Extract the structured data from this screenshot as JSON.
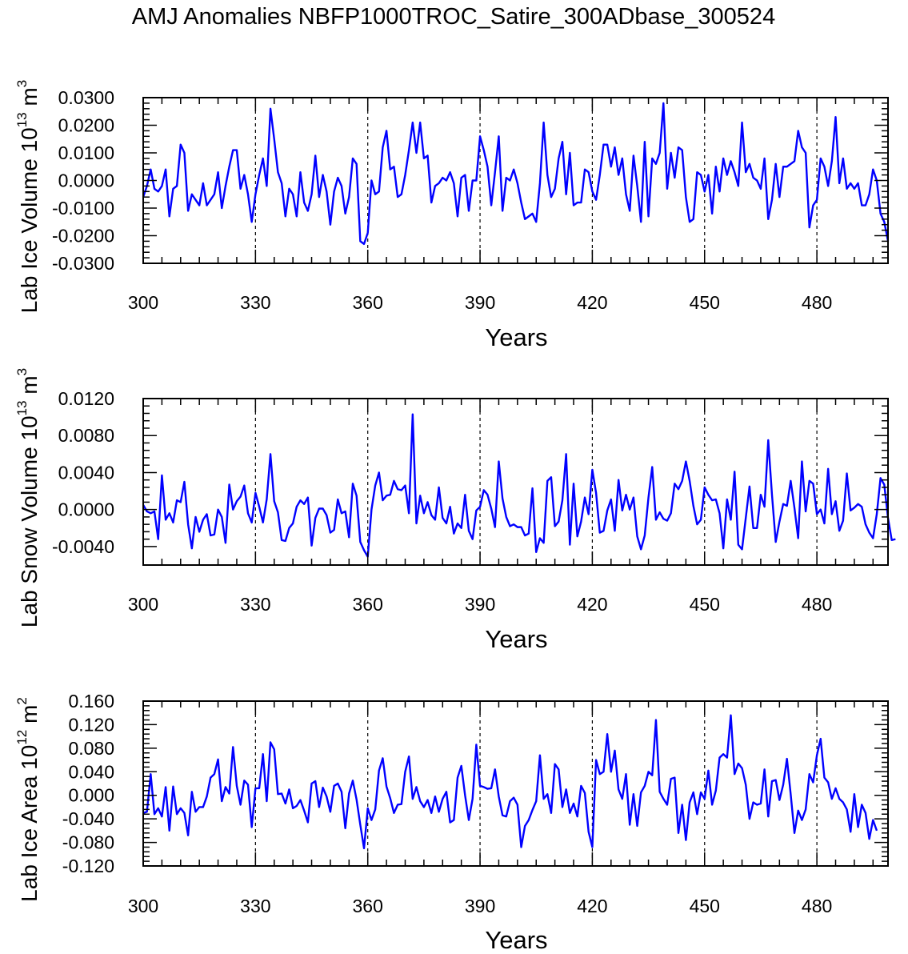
{
  "title": "AMJ Anomalies NBFP1000TROC_Satire_300ADbase_300524",
  "colors": {
    "series": "#0000ff",
    "axes": "#000000",
    "reference": "#000000"
  },
  "chart_data": [
    {
      "type": "line",
      "ylabel": {
        "text": "Lab Ice Volume 10",
        "exponent": "13",
        "unit": " m",
        "unit_exponent": "3"
      },
      "xlabel": "Years",
      "xlim": [
        300,
        499
      ],
      "ylim": [
        -0.03,
        0.03
      ],
      "xticks": [
        300,
        330,
        360,
        390,
        420,
        450,
        480
      ],
      "xtick_labels": [
        "300",
        "330",
        "360",
        "390",
        "420",
        "450",
        "480"
      ],
      "yticks": [
        -0.03,
        -0.02,
        -0.01,
        0,
        0.01,
        0.02,
        0.03
      ],
      "ytick_labels": [
        "-0.0300",
        "-0.0200",
        "-0.0100",
        "0.0000",
        "0.0100",
        "0.0200",
        "0.0300"
      ],
      "reference_lines_x": [
        330,
        360,
        390,
        420,
        450,
        480
      ],
      "series": [
        {
          "name": "Lab Ice Volume",
          "x_start": 300,
          "x_step": 1,
          "values": [
            -0.006,
            -0.002,
            0.004,
            -0.003,
            -0.004,
            -0.002,
            0.004,
            -0.013,
            -0.003,
            -0.002,
            0.013,
            0.01,
            -0.011,
            -0.005,
            -0.007,
            -0.009,
            -0.001,
            -0.009,
            -0.007,
            -0.005,
            0.003,
            -0.01,
            -0.002,
            0.005,
            0.011,
            0.011,
            -0.003,
            0.002,
            -0.005,
            -0.015,
            -0.005,
            0.002,
            0.008,
            -0.002,
            0.026,
            0.015,
            0.003,
            -0.001,
            -0.013,
            -0.003,
            -0.005,
            -0.013,
            0.003,
            -0.008,
            -0.011,
            -0.005,
            0.009,
            -0.006,
            0.002,
            -0.004,
            -0.016,
            -0.004,
            0.001,
            -0.002,
            -0.012,
            -0.006,
            0.008,
            0.006,
            -0.022,
            -0.023,
            -0.019,
            0.0,
            -0.005,
            -0.004,
            0.012,
            0.018,
            0.004,
            0.005,
            -0.006,
            -0.005,
            0.002,
            0.011,
            0.021,
            0.01,
            0.021,
            0.008,
            0.009,
            -0.008,
            -0.002,
            -0.001,
            0.001,
            0.0,
            0.003,
            -0.001,
            -0.013,
            0.001,
            0.002,
            -0.011,
            0.0,
            0.0,
            0.016,
            0.011,
            0.005,
            -0.009,
            0.003,
            0.016,
            -0.011,
            0.001,
            0.0,
            0.004,
            -0.001,
            -0.008,
            -0.014,
            -0.013,
            -0.012,
            -0.015,
            -0.001,
            0.021,
            0.002,
            -0.006,
            -0.003,
            0.008,
            0.014,
            -0.005,
            0.01,
            -0.009,
            -0.008,
            -0.008,
            0.004,
            0.003,
            -0.004,
            -0.007,
            0.002,
            0.013,
            0.013,
            0.005,
            0.012,
            0.002,
            0.008,
            -0.005,
            -0.011,
            0.009,
            -0.002,
            -0.015,
            0.014,
            -0.013,
            0.008,
            0.006,
            0.01,
            0.028,
            -0.003,
            0.01,
            0.001,
            0.012,
            0.011,
            -0.006,
            -0.015,
            -0.014,
            0.003,
            0.002,
            -0.004,
            0.002,
            -0.012,
            0.005,
            -0.004,
            0.008,
            0.002,
            0.007,
            0.003,
            -0.002,
            0.021,
            0.003,
            0.006,
            0.001,
            0.0,
            -0.003,
            0.008,
            -0.014,
            -0.007,
            0.006,
            -0.006,
            0.005,
            0.005,
            0.006,
            0.007,
            0.018,
            0.012,
            0.01,
            -0.017,
            -0.009,
            -0.007,
            0.008,
            0.005,
            -0.002,
            0.007,
            0.023,
            -0.001,
            0.008,
            -0.003,
            -0.001,
            -0.003,
            -0.001,
            -0.009,
            -0.009,
            -0.005,
            0.004,
            0.0,
            -0.012,
            -0.015,
            -0.022
          ]
        }
      ]
    },
    {
      "type": "line",
      "ylabel": {
        "text": "Lab Snow Volume 10",
        "exponent": "13",
        "unit": " m",
        "unit_exponent": "3"
      },
      "xlabel": "Years",
      "xlim": [
        300,
        499
      ],
      "ylim": [
        -0.006,
        0.012
      ],
      "xticks": [
        300,
        330,
        360,
        390,
        420,
        450,
        480
      ],
      "xtick_labels": [
        "300",
        "330",
        "360",
        "390",
        "420",
        "450",
        "480"
      ],
      "yticks": [
        -0.004,
        0,
        0.004,
        0.008,
        0.012
      ],
      "ytick_labels": [
        "-0.0040",
        "0.0000",
        "0.0040",
        "0.0080",
        "0.0120"
      ],
      "reference_lines_x": [
        330,
        360,
        390,
        420,
        450,
        480
      ],
      "series": [
        {
          "name": "Lab Snow Volume",
          "x_start": 300,
          "x_step": 1,
          "values": [
            0.0005,
            -0.0002,
            -0.0004,
            -0.0002,
            -0.0032,
            0.0037,
            -0.0011,
            -0.0004,
            -0.0014,
            0.001,
            0.0008,
            0.003,
            -0.0016,
            -0.0042,
            -0.0008,
            -0.0024,
            -0.0011,
            -0.0005,
            -0.0028,
            -0.0027,
            0.0,
            -0.0008,
            -0.0036,
            0.0027,
            0.0,
            0.0009,
            0.0014,
            0.0026,
            -0.0004,
            -0.0014,
            0.0018,
            0.0003,
            -0.0014,
            0.0011,
            0.006,
            0.0009,
            -0.0003,
            -0.0033,
            -0.0034,
            -0.002,
            -0.0015,
            0.0003,
            0.001,
            0.0006,
            0.0013,
            -0.0039,
            -0.0009,
            0.0001,
            0.0001,
            -0.0006,
            -0.0025,
            -0.0022,
            0.0011,
            -0.0004,
            -0.0002,
            -0.003,
            0.0028,
            0.0015,
            -0.0035,
            -0.0044,
            -0.0051,
            0.0,
            0.0026,
            0.004,
            0.001,
            0.0015,
            0.0016,
            0.0031,
            0.0022,
            0.0021,
            0.0026,
            -0.0004,
            0.0103,
            -0.0015,
            0.0015,
            -0.0004,
            0.0008,
            -0.0006,
            -0.0011,
            0.0024,
            -0.0009,
            -0.0015,
            0.0003,
            -0.0026,
            -0.0015,
            -0.002,
            0.0016,
            -0.0023,
            -0.0032,
            -0.0001,
            0.0003,
            0.0021,
            0.0016,
            0.0001,
            -0.0019,
            0.0052,
            0.0012,
            -0.0008,
            -0.0018,
            -0.0016,
            -0.0019,
            -0.0019,
            -0.0028,
            -0.0026,
            0.0023,
            -0.0046,
            -0.0031,
            -0.0036,
            0.0031,
            0.0035,
            -0.0018,
            -0.0013,
            0.001,
            0.006,
            -0.0038,
            0.0028,
            -0.0029,
            -0.0013,
            0.0013,
            -0.0005,
            0.0043,
            0.0018,
            -0.0025,
            -0.0023,
            -0.0001,
            0.0011,
            -0.0023,
            0.0032,
            -0.0001,
            0.0016,
            0.0,
            0.0013,
            -0.0029,
            -0.0043,
            -0.0028,
            0.0013,
            0.0046,
            -0.0011,
            -0.0003,
            -0.001,
            -0.0012,
            -0.0004,
            0.0028,
            0.0022,
            0.0031,
            0.0052,
            0.0031,
            0.0004,
            -0.0016,
            -0.0011,
            0.0024,
            0.0016,
            0.001,
            0.0011,
            -0.0004,
            -0.0042,
            0.0011,
            -0.0011,
            0.0041,
            -0.0038,
            -0.0043,
            -0.0009,
            0.0025,
            -0.002,
            -0.002,
            0.0016,
            0.0003,
            0.0075,
            0.0016,
            -0.0035,
            -0.0013,
            0.0006,
            0.0004,
            0.0031,
            0.0002,
            -0.0031,
            0.0052,
            -0.0002,
            0.0031,
            0.0028,
            -0.0005,
            0.0,
            -0.0015,
            0.0044,
            -0.0005,
            0.0009,
            -0.0023,
            -0.0012,
            0.0039,
            -0.0001,
            0.0002,
            0.0006,
            0.0003,
            -0.0016,
            -0.0025,
            -0.0031,
            -0.0005,
            0.0034,
            0.0027,
            -0.0009,
            -0.0033,
            -0.0032
          ]
        }
      ]
    },
    {
      "type": "line",
      "ylabel": {
        "text": "Lab Ice Area 10",
        "exponent": "12",
        "unit": " m",
        "unit_exponent": "2"
      },
      "xlabel": "Years",
      "xlim": [
        300,
        499
      ],
      "ylim": [
        -0.12,
        0.16
      ],
      "xticks": [
        300,
        330,
        360,
        390,
        420,
        450,
        480
      ],
      "xtick_labels": [
        "300",
        "330",
        "360",
        "390",
        "420",
        "450",
        "480"
      ],
      "yticks": [
        -0.12,
        -0.08,
        -0.04,
        0,
        0.04,
        0.08,
        0.12,
        0.16
      ],
      "ytick_labels": [
        "-0.120",
        "-0.080",
        "-0.040",
        "0.000",
        "0.040",
        "0.080",
        "0.120",
        "0.160"
      ],
      "reference_lines_x": [
        330,
        360,
        390,
        420,
        450,
        480
      ],
      "series": [
        {
          "name": "Lab Ice Area",
          "x_start": 300,
          "x_step": 1,
          "values": [
            -0.03,
            -0.028,
            0.036,
            -0.032,
            -0.022,
            -0.036,
            0.014,
            -0.06,
            0.015,
            -0.032,
            -0.022,
            -0.03,
            -0.068,
            0.006,
            -0.028,
            -0.02,
            -0.02,
            -0.002,
            0.03,
            0.036,
            0.061,
            -0.01,
            0.014,
            0.003,
            0.082,
            0.016,
            -0.016,
            0.025,
            0.018,
            -0.054,
            0.012,
            0.012,
            0.07,
            -0.01,
            0.09,
            0.078,
            0.002,
            0.003,
            -0.014,
            0.01,
            -0.022,
            -0.018,
            -0.008,
            -0.026,
            -0.046,
            0.02,
            0.024,
            -0.02,
            0.013,
            -0.002,
            -0.028,
            0.016,
            0.02,
            0.006,
            -0.056,
            0.003,
            0.025,
            -0.007,
            -0.05,
            -0.09,
            -0.022,
            -0.042,
            -0.024,
            0.042,
            0.063,
            0.015,
            -0.005,
            -0.03,
            -0.016,
            -0.015,
            0.04,
            0.066,
            -0.006,
            0.014,
            -0.01,
            -0.02,
            -0.008,
            -0.03,
            -0.002,
            -0.028,
            -0.006,
            0.006,
            -0.046,
            -0.042,
            0.03,
            0.05,
            0.0,
            -0.042,
            -0.006,
            0.086,
            0.016,
            0.014,
            0.011,
            0.012,
            0.044,
            -0.002,
            -0.034,
            -0.036,
            -0.01,
            -0.004,
            -0.016,
            -0.088,
            -0.052,
            -0.042,
            -0.025,
            -0.01,
            0.068,
            -0.006,
            0.002,
            -0.03,
            0.053,
            0.044,
            -0.02,
            0.01,
            -0.03,
            -0.014,
            -0.036,
            0.016,
            0.004,
            -0.062,
            -0.088,
            0.06,
            0.036,
            0.04,
            0.104,
            0.04,
            0.076,
            0.01,
            -0.006,
            0.036,
            -0.05,
            0.002,
            -0.052,
            0.005,
            0.016,
            0.04,
            0.034,
            0.128,
            0.006,
            -0.006,
            -0.016,
            0.028,
            0.03,
            -0.064,
            -0.016,
            -0.076,
            -0.012,
            0.005,
            -0.032,
            0.005,
            -0.006,
            0.042,
            -0.016,
            0.008,
            0.064,
            0.07,
            0.064,
            0.136,
            0.036,
            0.054,
            0.046,
            0.018,
            -0.04,
            -0.012,
            -0.016,
            -0.014,
            0.044,
            -0.036,
            0.024,
            0.026,
            -0.008,
            0.018,
            0.062,
            0.002,
            -0.064,
            -0.026,
            -0.042,
            -0.024,
            0.036,
            0.022,
            0.068,
            0.096,
            0.03,
            0.022,
            -0.006,
            0.012,
            -0.006,
            -0.012,
            -0.024,
            -0.062,
            0.002,
            -0.054,
            -0.016,
            -0.03,
            -0.074,
            -0.042,
            -0.06
          ]
        }
      ]
    }
  ]
}
